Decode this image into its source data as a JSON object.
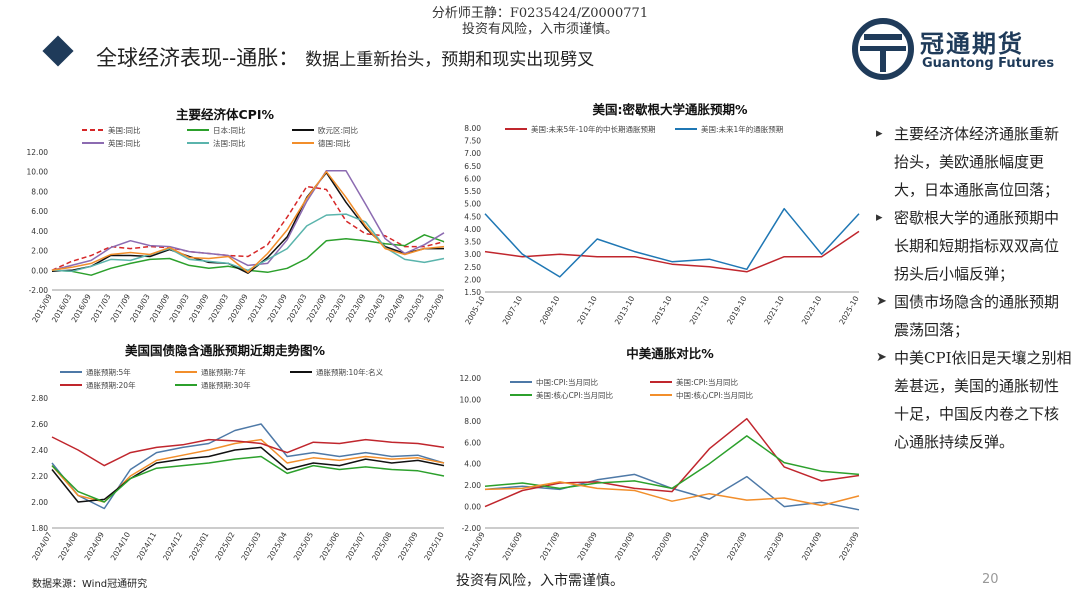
{
  "header": {
    "analyst_line": "分析师王静：F0235424/Z0000771",
    "risk_line": "投资有风险，入市须谨慎。",
    "title": "全球经济表现--通胀：",
    "subtitle": "数据上重新抬头，预期和现实出现劈叉",
    "logo_cn": "冠通期货",
    "logo_en": "Guantong Futures"
  },
  "side_notes": [
    {
      "bullet": "▸",
      "text": "主要经济体经济通胀重新抬头，美欧通胀幅度更大，日本通胀高位回落；"
    },
    {
      "bullet": "▸",
      "text": "密歇根大学的通胀预期中长期和短期指标双双高位拐头后小幅反弹；"
    },
    {
      "bullet": "➤",
      "text": "国债市场隐含的通胀预期震荡回落；"
    },
    {
      "bullet": "➤",
      "text": "中美CPI依旧是天壤之别相差甚远，美国的通胀韧性十足，中国反内卷之下核心通胀持续反弹。"
    }
  ],
  "footer": {
    "source": "数据来源：Wind冠通研究",
    "risk": "投资有风险，入市需谨慎。",
    "page": "20"
  },
  "colors": {
    "navy": "#1f3b5a"
  },
  "chart_data": [
    {
      "type": "line",
      "title": "主要经济体CPI%",
      "x": [
        "2015/09",
        "2016/03",
        "2016/09",
        "2017/03",
        "2017/09",
        "2018/03",
        "2018/09",
        "2019/03",
        "2019/09",
        "2020/03",
        "2020/09",
        "2021/03",
        "2021/09",
        "2022/03",
        "2022/09",
        "2023/03",
        "2023/09",
        "2024/03",
        "2024/09",
        "2025/03",
        "2025/09"
      ],
      "ylim": [
        -2,
        12
      ],
      "yticks": [
        "-2.00",
        "0.00",
        "2.00",
        "4.00",
        "6.00",
        "8.00",
        "10.00",
        "12.00"
      ],
      "legend_position": "top",
      "series": [
        {
          "name": "美国:同比",
          "color": "#d62728",
          "dash": true,
          "values": [
            0.0,
            0.9,
            1.5,
            2.4,
            2.2,
            2.4,
            2.3,
            1.9,
            1.7,
            1.5,
            1.4,
            2.6,
            5.4,
            8.5,
            8.2,
            5.0,
            3.7,
            3.5,
            2.4,
            2.4,
            2.9
          ]
        },
        {
          "name": "日本:同比",
          "color": "#2ca02c",
          "values": [
            0.0,
            -0.1,
            -0.5,
            0.2,
            0.7,
            1.1,
            1.2,
            0.5,
            0.2,
            0.4,
            0.0,
            -0.2,
            0.2,
            1.2,
            3.0,
            3.2,
            3.0,
            2.7,
            2.5,
            3.6,
            2.9
          ]
        },
        {
          "name": "欧元区:同比",
          "color": "#111111",
          "values": [
            -0.1,
            0.0,
            0.4,
            1.5,
            1.5,
            1.4,
            2.1,
            1.4,
            0.8,
            0.7,
            -0.3,
            1.3,
            3.4,
            7.4,
            9.9,
            6.9,
            4.3,
            2.4,
            1.7,
            2.2,
            2.2
          ]
        },
        {
          "name": "英国:同比",
          "color": "#8c6bb1",
          "values": [
            0.0,
            0.5,
            1.0,
            2.3,
            3.0,
            2.5,
            2.4,
            1.9,
            1.7,
            1.5,
            0.5,
            0.7,
            3.1,
            7.0,
            10.1,
            10.1,
            6.7,
            3.2,
            1.7,
            2.6,
            3.8
          ]
        },
        {
          "name": "法国:同比",
          "color": "#5ab4ac",
          "values": [
            0.0,
            -0.1,
            0.4,
            1.1,
            1.0,
            1.6,
            2.2,
            1.1,
            0.9,
            0.7,
            0.0,
            1.1,
            2.2,
            4.5,
            5.6,
            5.7,
            4.9,
            2.3,
            1.1,
            0.8,
            1.2
          ]
        },
        {
          "name": "德国:同比",
          "color": "#f28e2b",
          "values": [
            0.0,
            0.3,
            0.7,
            1.6,
            1.8,
            1.6,
            2.3,
            1.3,
            1.2,
            1.4,
            -0.2,
            1.7,
            4.1,
            7.3,
            10.0,
            7.4,
            4.5,
            2.2,
            1.6,
            2.2,
            2.4
          ]
        }
      ]
    },
    {
      "type": "line",
      "title": "美国:密歇根大学通胀预期%",
      "x": [
        "2005-10",
        "2007-10",
        "2009-10",
        "2011-10",
        "2013-10",
        "2015-10",
        "2017-10",
        "2019-10",
        "2021-10",
        "2023-10",
        "2025-10"
      ],
      "ylim": [
        1.5,
        8.0
      ],
      "yticks": [
        "1.50",
        "2.00",
        "2.50",
        "3.00",
        "3.50",
        "4.00",
        "4.50",
        "5.00",
        "5.50",
        "6.00",
        "6.50",
        "7.00",
        "7.50",
        "8.00"
      ],
      "legend_position": "top",
      "series": [
        {
          "name": "美国:未来5年-10年的中长期通胀预期",
          "color": "#c0262d",
          "values": [
            3.1,
            2.9,
            3.0,
            2.9,
            2.9,
            2.6,
            2.5,
            2.3,
            2.9,
            2.9,
            3.9
          ]
        },
        {
          "name": "美国:未来1年的通胀预期",
          "color": "#1f77b4",
          "values": [
            4.6,
            3.0,
            2.1,
            3.6,
            3.1,
            2.7,
            2.8,
            2.4,
            4.8,
            3.0,
            4.6
          ]
        }
      ]
    },
    {
      "type": "line",
      "title": "美国国债隐含通胀预期近期走势图%",
      "x": [
        "2024/07",
        "2024/08",
        "2024/09",
        "2024/10",
        "2024/11",
        "2024/12",
        "2025/01",
        "2025/02",
        "2025/03",
        "2025/04",
        "2025/05",
        "2025/06",
        "2025/07",
        "2025/08",
        "2025/09",
        "2025/10"
      ],
      "ylim": [
        1.8,
        2.8
      ],
      "yticks": [
        "1.80",
        "2.00",
        "2.20",
        "2.40",
        "2.60",
        "2.80"
      ],
      "legend_position": "top",
      "series": [
        {
          "name": "通胀预期:5年",
          "color": "#4e79a7",
          "values": [
            2.3,
            2.05,
            1.95,
            2.25,
            2.38,
            2.42,
            2.45,
            2.55,
            2.6,
            2.35,
            2.38,
            2.35,
            2.38,
            2.35,
            2.36,
            2.3
          ]
        },
        {
          "name": "通胀预期:7年",
          "color": "#f28e2b",
          "values": [
            2.28,
            2.05,
            2.0,
            2.2,
            2.32,
            2.36,
            2.4,
            2.45,
            2.48,
            2.3,
            2.34,
            2.32,
            2.35,
            2.33,
            2.34,
            2.3
          ]
        },
        {
          "name": "通胀预期:10年:名义",
          "color": "#111111",
          "values": [
            2.25,
            2.0,
            2.02,
            2.18,
            2.3,
            2.33,
            2.35,
            2.4,
            2.42,
            2.25,
            2.3,
            2.28,
            2.33,
            2.3,
            2.32,
            2.28
          ]
        },
        {
          "name": "通胀预期:20年",
          "color": "#c0262d",
          "values": [
            2.5,
            2.4,
            2.28,
            2.38,
            2.42,
            2.44,
            2.48,
            2.47,
            2.45,
            2.38,
            2.46,
            2.45,
            2.48,
            2.46,
            2.45,
            2.42
          ]
        },
        {
          "name": "通胀预期:30年",
          "color": "#2ca02c",
          "values": [
            2.28,
            2.08,
            2.0,
            2.18,
            2.26,
            2.28,
            2.3,
            2.33,
            2.35,
            2.22,
            2.28,
            2.25,
            2.27,
            2.25,
            2.24,
            2.2
          ]
        }
      ]
    },
    {
      "type": "line",
      "title": "中美通胀对比%",
      "x": [
        "2015/09",
        "2016/09",
        "2017/09",
        "2018/09",
        "2019/09",
        "2020/09",
        "2021/09",
        "2022/09",
        "2023/09",
        "2024/09",
        "2025/09"
      ],
      "ylim": [
        -2,
        12
      ],
      "yticks": [
        "-2.00",
        "0.00",
        "2.00",
        "4.00",
        "6.00",
        "8.00",
        "10.00",
        "12.00"
      ],
      "legend_position": "top",
      "series": [
        {
          "name": "中国:CPI:当月同比",
          "color": "#4e79a7",
          "values": [
            1.6,
            1.9,
            1.6,
            2.5,
            3.0,
            1.7,
            0.7,
            2.8,
            0.0,
            0.4,
            -0.3
          ]
        },
        {
          "name": "美国:CPI:当月同比",
          "color": "#c0262d",
          "values": [
            0.0,
            1.5,
            2.2,
            2.3,
            1.7,
            1.4,
            5.4,
            8.2,
            3.7,
            2.4,
            2.9
          ]
        },
        {
          "name": "美国:核心CPI:当月同比",
          "color": "#2ca02c",
          "values": [
            1.9,
            2.2,
            1.7,
            2.2,
            2.4,
            1.7,
            4.0,
            6.6,
            4.1,
            3.3,
            3.0
          ]
        },
        {
          "name": "中国:核心CPI:当月同比",
          "color": "#f28e2b",
          "values": [
            1.6,
            1.7,
            2.3,
            1.7,
            1.5,
            0.5,
            1.2,
            0.6,
            0.8,
            0.1,
            1.0
          ]
        }
      ]
    }
  ]
}
